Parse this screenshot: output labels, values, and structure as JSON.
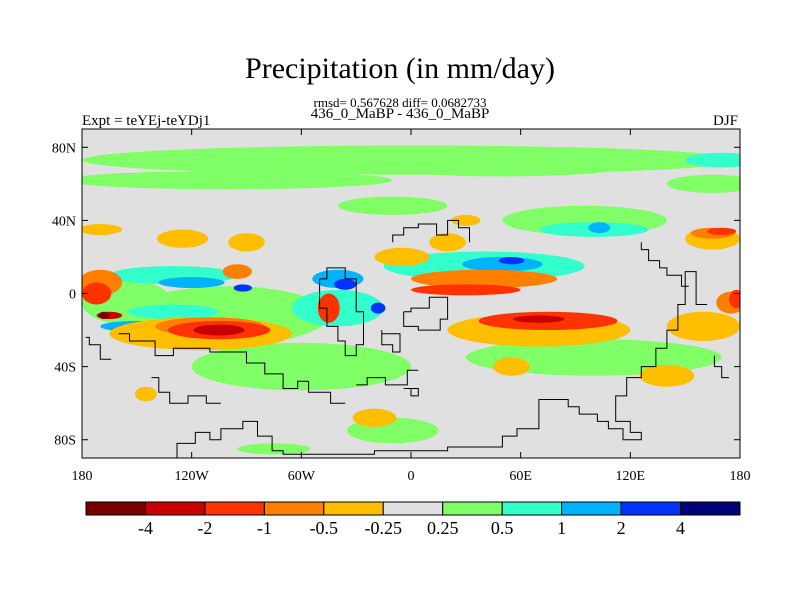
{
  "title": "Precipitation (in mm/day)",
  "stats": "rmsd= 0.567628 diff= 0.0682733",
  "subtitle": "436_0_MaBP - 436_0_MaBP",
  "left_label": "Expt = teYEj-teYDj1",
  "right_label": "DJF",
  "chart_data": {
    "type": "heatmap",
    "projection": "cylindrical equidistant",
    "xlim": [
      -180,
      180
    ],
    "ylim": [
      -90,
      90
    ],
    "x_ticks": [
      {
        "value": -180,
        "label": "180"
      },
      {
        "value": -120,
        "label": "120W"
      },
      {
        "value": -60,
        "label": "60W"
      },
      {
        "value": 0,
        "label": "0"
      },
      {
        "value": 60,
        "label": "60E"
      },
      {
        "value": 120,
        "label": "120E"
      },
      {
        "value": 180,
        "label": "180"
      }
    ],
    "y_ticks": [
      {
        "value": 80,
        "label": "80N"
      },
      {
        "value": 40,
        "label": "40N"
      },
      {
        "value": 0,
        "label": "0"
      },
      {
        "value": -40,
        "label": "40S"
      },
      {
        "value": -80,
        "label": "80S"
      }
    ],
    "colorbar": {
      "labels": [
        "-4",
        "-2",
        "-1",
        "-0.5",
        "-0.25",
        "0.25",
        "0.5",
        "1",
        "2",
        "4"
      ],
      "colors": [
        "#7a0000",
        "#c80000",
        "#ff3300",
        "#ff8000",
        "#ffbe00",
        "#e0e0e0",
        "#80ff66",
        "#33ffcc",
        "#00b3ff",
        "#0033ff",
        "#00007a"
      ]
    },
    "background_color": "#e0e0e0",
    "regions": [
      {
        "value": 0.4,
        "color": "#80ff66",
        "cx": 0,
        "cy": 73,
        "rx": 180,
        "ry": 8
      },
      {
        "value": 0.4,
        "color": "#80ff66",
        "cx": -100,
        "cy": 62,
        "rx": 90,
        "ry": 5
      },
      {
        "value": 0.4,
        "color": "#80ff66",
        "cx": 50,
        "cy": 70,
        "rx": 70,
        "ry": 6
      },
      {
        "value": 0.4,
        "color": "#80ff66",
        "cx": 165,
        "cy": 60,
        "rx": 25,
        "ry": 5
      },
      {
        "value": 0.7,
        "color": "#33ffcc",
        "cx": 170,
        "cy": 73,
        "rx": 20,
        "ry": 4
      },
      {
        "value": 0.4,
        "color": "#80ff66",
        "cx": 95,
        "cy": 40,
        "rx": 45,
        "ry": 8
      },
      {
        "value": 0.7,
        "color": "#33ffcc",
        "cx": 100,
        "cy": 35,
        "rx": 30,
        "ry": 4
      },
      {
        "value": 1.5,
        "color": "#00b3ff",
        "cx": 103,
        "cy": 36,
        "rx": 6,
        "ry": 3
      },
      {
        "value": 0.4,
        "color": "#80ff66",
        "cx": -10,
        "cy": 48,
        "rx": 30,
        "ry": 5
      },
      {
        "value": 0.4,
        "color": "#80ff66",
        "cx": -155,
        "cy": -5,
        "rx": 25,
        "ry": 12
      },
      {
        "value": 0.4,
        "color": "#80ff66",
        "cx": -100,
        "cy": -12,
        "rx": 55,
        "ry": 16
      },
      {
        "value": 0.4,
        "color": "#80ff66",
        "cx": -60,
        "cy": -40,
        "rx": 60,
        "ry": 13
      },
      {
        "value": 0.4,
        "color": "#80ff66",
        "cx": 100,
        "cy": -35,
        "rx": 70,
        "ry": 10
      },
      {
        "value": 0.4,
        "color": "#80ff66",
        "cx": -10,
        "cy": -75,
        "rx": 25,
        "ry": 7
      },
      {
        "value": 0.4,
        "color": "#80ff66",
        "cx": -75,
        "cy": -85,
        "rx": 20,
        "ry": 3
      },
      {
        "value": 0.7,
        "color": "#33ffcc",
        "cx": -130,
        "cy": 10,
        "rx": 35,
        "ry": 5
      },
      {
        "value": 0.7,
        "color": "#33ffcc",
        "cx": 40,
        "cy": 15,
        "rx": 55,
        "ry": 8
      },
      {
        "value": 0.7,
        "color": "#33ffcc",
        "cx": -130,
        "cy": -10,
        "rx": 25,
        "ry": 4
      },
      {
        "value": 0.7,
        "color": "#33ffcc",
        "cx": -40,
        "cy": -8,
        "rx": 25,
        "ry": 10
      },
      {
        "value": 1.5,
        "color": "#00b3ff",
        "cx": -120,
        "cy": 6,
        "rx": 18,
        "ry": 3
      },
      {
        "value": 1.5,
        "color": "#00b3ff",
        "cx": -40,
        "cy": 8,
        "rx": 14,
        "ry": 5
      },
      {
        "value": 1.5,
        "color": "#00b3ff",
        "cx": 50,
        "cy": 16,
        "rx": 22,
        "ry": 4
      },
      {
        "value": 1.5,
        "color": "#00b3ff",
        "cx": -150,
        "cy": -18,
        "rx": 20,
        "ry": 3
      },
      {
        "value": 3,
        "color": "#0033ff",
        "cx": -36,
        "cy": 5,
        "rx": 6,
        "ry": 3
      },
      {
        "value": 3,
        "color": "#0033ff",
        "cx": 55,
        "cy": 18,
        "rx": 7,
        "ry": 2
      },
      {
        "value": 3,
        "color": "#0033ff",
        "cx": -18,
        "cy": -8,
        "rx": 4,
        "ry": 3
      },
      {
        "value": 3,
        "color": "#0033ff",
        "cx": -92,
        "cy": 3,
        "rx": 5,
        "ry": 2
      },
      {
        "value": -0.4,
        "color": "#ffbe00",
        "cx": -170,
        "cy": 35,
        "rx": 12,
        "ry": 3
      },
      {
        "value": -0.4,
        "color": "#ffbe00",
        "cx": -125,
        "cy": 30,
        "rx": 14,
        "ry": 5
      },
      {
        "value": -0.4,
        "color": "#ffbe00",
        "cx": -90,
        "cy": 28,
        "rx": 10,
        "ry": 5
      },
      {
        "value": -0.4,
        "color": "#ffbe00",
        "cx": -5,
        "cy": 20,
        "rx": 15,
        "ry": 5
      },
      {
        "value": -0.4,
        "color": "#ffbe00",
        "cx": 20,
        "cy": 28,
        "rx": 10,
        "ry": 5
      },
      {
        "value": -0.4,
        "color": "#ffbe00",
        "cx": 165,
        "cy": 30,
        "rx": 15,
        "ry": 6
      },
      {
        "value": -0.4,
        "color": "#ffbe00",
        "cx": -115,
        "cy": -22,
        "rx": 50,
        "ry": 9
      },
      {
        "value": -0.4,
        "color": "#ffbe00",
        "cx": 70,
        "cy": -20,
        "rx": 50,
        "ry": 9
      },
      {
        "value": -0.4,
        "color": "#ffbe00",
        "cx": 140,
        "cy": -45,
        "rx": 15,
        "ry": 6
      },
      {
        "value": -0.4,
        "color": "#ffbe00",
        "cx": -145,
        "cy": -55,
        "rx": 6,
        "ry": 4
      },
      {
        "value": -0.4,
        "color": "#ffbe00",
        "cx": 55,
        "cy": -40,
        "rx": 10,
        "ry": 5
      },
      {
        "value": -0.4,
        "color": "#ffbe00",
        "cx": 160,
        "cy": -18,
        "rx": 20,
        "ry": 8
      },
      {
        "value": -0.4,
        "color": "#ffbe00",
        "cx": -20,
        "cy": -68,
        "rx": 12,
        "ry": 5
      },
      {
        "value": -0.4,
        "color": "#ffbe00",
        "cx": 30,
        "cy": 40,
        "rx": 8,
        "ry": 3
      },
      {
        "value": -0.75,
        "color": "#ff8000",
        "cx": -170,
        "cy": 6,
        "rx": 12,
        "ry": 7
      },
      {
        "value": -0.75,
        "color": "#ff8000",
        "cx": 40,
        "cy": 8,
        "rx": 40,
        "ry": 5
      },
      {
        "value": -0.75,
        "color": "#ff8000",
        "cx": -110,
        "cy": -18,
        "rx": 30,
        "ry": 5
      },
      {
        "value": -0.75,
        "color": "#ff8000",
        "cx": 165,
        "cy": 33,
        "rx": 12,
        "ry": 3
      },
      {
        "value": -0.75,
        "color": "#ff8000",
        "cx": -95,
        "cy": 12,
        "rx": 8,
        "ry": 4
      },
      {
        "value": -0.75,
        "color": "#ff8000",
        "cx": 175,
        "cy": -5,
        "rx": 8,
        "ry": 6
      },
      {
        "value": -1.5,
        "color": "#ff3300",
        "cx": -105,
        "cy": -20,
        "rx": 28,
        "ry": 5
      },
      {
        "value": -1.5,
        "color": "#ff3300",
        "cx": 75,
        "cy": -15,
        "rx": 38,
        "ry": 5
      },
      {
        "value": -1.5,
        "color": "#ff3300",
        "cx": 30,
        "cy": 2,
        "rx": 30,
        "ry": 3
      },
      {
        "value": -1.5,
        "color": "#ff3300",
        "cx": -172,
        "cy": 0,
        "rx": 8,
        "ry": 6
      },
      {
        "value": -1.5,
        "color": "#ff3300",
        "cx": 170,
        "cy": 34,
        "rx": 8,
        "ry": 2
      },
      {
        "value": -1.5,
        "color": "#ff3300",
        "cx": -45,
        "cy": -8,
        "rx": 6,
        "ry": 8
      },
      {
        "value": -1.5,
        "color": "#ff3300",
        "cx": 178,
        "cy": -3,
        "rx": 4,
        "ry": 5
      },
      {
        "value": -3,
        "color": "#c80000",
        "cx": -105,
        "cy": -20,
        "rx": 14,
        "ry": 3
      },
      {
        "value": -3,
        "color": "#c80000",
        "cx": 70,
        "cy": -14,
        "rx": 14,
        "ry": 2
      },
      {
        "value": -3,
        "color": "#c80000",
        "cx": -165,
        "cy": -12,
        "rx": 7,
        "ry": 2
      },
      {
        "value": -5,
        "color": "#7a0000",
        "cx": -168,
        "cy": -12,
        "rx": 3,
        "ry": 2
      }
    ]
  }
}
